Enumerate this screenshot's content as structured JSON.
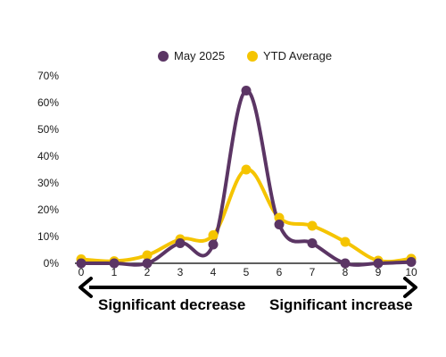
{
  "chart_data": {
    "type": "line",
    "smooth": true,
    "x": [
      0,
      1,
      2,
      3,
      4,
      5,
      6,
      7,
      8,
      9,
      10
    ],
    "series": [
      {
        "name": "May 2025",
        "color": "#5b3564",
        "values": [
          0,
          0,
          0,
          7.5,
          7,
          64.5,
          14.5,
          7.5,
          0,
          0,
          0.5
        ]
      },
      {
        "name": "YTD Average",
        "color": "#f5c400",
        "values": [
          1.5,
          0.8,
          3,
          9,
          10.5,
          35,
          17,
          14,
          8,
          1,
          1.7
        ]
      }
    ],
    "ylim": [
      0,
      70
    ],
    "y_ticks": [
      "0%",
      "10%",
      "20%",
      "30%",
      "40%",
      "50%",
      "60%",
      "70%"
    ],
    "x_ticks": [
      "0",
      "1",
      "2",
      "3",
      "4",
      "5",
      "6",
      "7",
      "8",
      "9",
      "10"
    ],
    "grid": false,
    "legend_position": "top-center",
    "annotations": {
      "left": "Significant decrease",
      "right": "Significant increase"
    }
  }
}
